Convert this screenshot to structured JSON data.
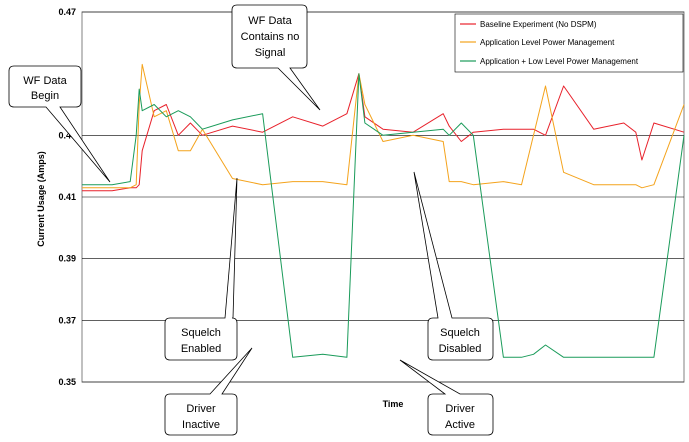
{
  "chart_data": {
    "type": "line",
    "xlabel": "Time",
    "ylabel": "Current Usage (Amps)",
    "ylim": [
      0.35,
      0.47
    ],
    "yticks": [
      "0.35",
      "0.37",
      "0.39",
      "0.41",
      "0.43",
      "0.47"
    ],
    "grid": "horizontal",
    "legend_position": "top-right",
    "x": [
      0,
      5,
      8,
      9,
      9.5,
      10,
      12,
      14,
      16,
      18,
      20,
      25,
      30,
      35,
      40,
      44,
      46,
      47,
      50,
      55,
      60,
      61,
      63,
      65,
      70,
      73,
      75,
      77,
      80,
      85,
      90,
      92,
      93,
      95,
      100
    ],
    "series": [
      {
        "name": "Baseline Experiment (No DSPM)",
        "color": "#e8212b",
        "values": [
          0.412,
          0.412,
          0.413,
          0.413,
          0.414,
          0.425,
          0.438,
          0.44,
          0.43,
          0.434,
          0.43,
          0.433,
          0.431,
          0.436,
          0.433,
          0.437,
          0.45,
          0.436,
          0.432,
          0.431,
          0.437,
          0.433,
          0.428,
          0.431,
          0.432,
          0.432,
          0.432,
          0.43,
          0.446,
          0.432,
          0.434,
          0.431,
          0.422,
          0.434,
          0.431
        ]
      },
      {
        "name": "Application Level Power Management",
        "color": "#f4a31c",
        "values": [
          0.413,
          0.413,
          0.413,
          0.414,
          0.44,
          0.453,
          0.436,
          0.438,
          0.425,
          0.425,
          0.432,
          0.416,
          0.414,
          0.415,
          0.415,
          0.414,
          0.45,
          0.44,
          0.428,
          0.43,
          0.428,
          0.415,
          0.415,
          0.414,
          0.415,
          0.414,
          0.43,
          0.446,
          0.418,
          0.414,
          0.414,
          0.414,
          0.413,
          0.414,
          0.44
        ]
      },
      {
        "name": "Application + Low Level Power Management",
        "color": "#1a9b5a",
        "values": [
          0.414,
          0.414,
          0.415,
          0.43,
          0.445,
          0.438,
          0.44,
          0.436,
          0.438,
          0.436,
          0.432,
          0.435,
          0.437,
          0.358,
          0.359,
          0.358,
          0.45,
          0.434,
          0.43,
          0.431,
          0.432,
          0.43,
          0.434,
          0.43,
          0.358,
          0.358,
          0.359,
          0.362,
          0.358,
          0.358,
          0.358,
          0.358,
          0.358,
          0.358,
          0.43
        ]
      }
    ],
    "annotations": [
      {
        "line1": "WF Data",
        "line2": "Begin"
      },
      {
        "line1": "WF Data",
        "line2": "Contains no",
        "line3": "Signal"
      },
      {
        "line1": "Squelch",
        "line2": "Enabled"
      },
      {
        "line1": "Squelch",
        "line2": "Disabled"
      },
      {
        "line1": "Driver",
        "line2": "Inactive"
      },
      {
        "line1": "Driver",
        "line2": "Active"
      }
    ]
  }
}
